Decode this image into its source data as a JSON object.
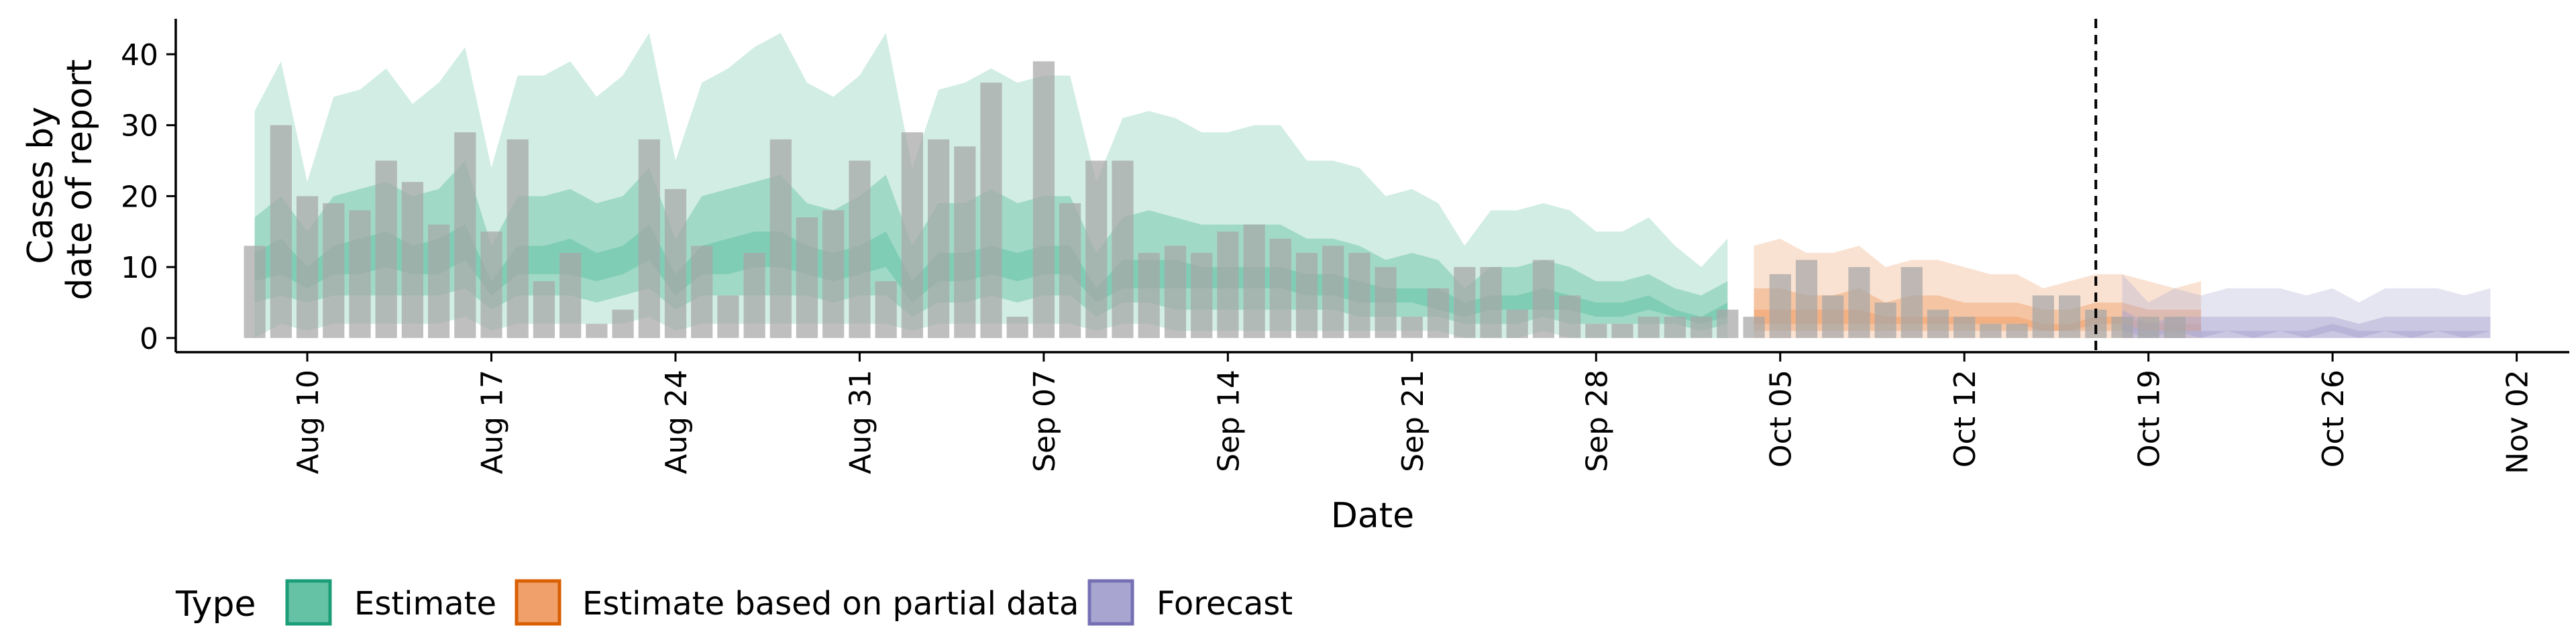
{
  "chart_data": {
    "type": "area",
    "title": "",
    "xlabel": "Date",
    "ylabel_lines": [
      "Cases by",
      "date of report"
    ],
    "xlim": [
      "2020-08-05",
      "2020-11-04"
    ],
    "ylim": [
      -2,
      45
    ],
    "yticks": [
      0,
      10,
      20,
      30,
      40
    ],
    "xticks": [
      {
        "date": "2020-08-10",
        "label": "Aug 10"
      },
      {
        "date": "2020-08-17",
        "label": "Aug 17"
      },
      {
        "date": "2020-08-24",
        "label": "Aug 24"
      },
      {
        "date": "2020-08-31",
        "label": "Aug 31"
      },
      {
        "date": "2020-09-07",
        "label": "Sep 07"
      },
      {
        "date": "2020-09-14",
        "label": "Sep 14"
      },
      {
        "date": "2020-09-21",
        "label": "Sep 21"
      },
      {
        "date": "2020-09-28",
        "label": "Sep 28"
      },
      {
        "date": "2020-10-05",
        "label": "Oct 05"
      },
      {
        "date": "2020-10-12",
        "label": "Oct 12"
      },
      {
        "date": "2020-10-19",
        "label": "Oct 19"
      },
      {
        "date": "2020-10-26",
        "label": "Oct 26"
      },
      {
        "date": "2020-11-02",
        "label": "Nov 02"
      }
    ],
    "forecast_date": "2020-10-17",
    "grid": false,
    "legend": {
      "position": "bottom",
      "title": "Type",
      "entries": [
        {
          "label": "Estimate",
          "fill": "#66c2a5",
          "stroke": "#1b9e77"
        },
        {
          "label": "Estimate based on partial data",
          "fill": "#f0a06a",
          "stroke": "#d95f02"
        },
        {
          "label": "Forecast",
          "fill": "#a9a5d1",
          "stroke": "#7570b3"
        }
      ]
    },
    "colors": {
      "bars": "#a6a6a6",
      "Estimate": "#66c2a5",
      "Estimate based on partial data": "#f0a06a",
      "Forecast": "#a9a5d1",
      "forecast_line": "#000000"
    },
    "reported_cases": {
      "start": "2020-08-08",
      "values": [
        13,
        30,
        20,
        19,
        18,
        25,
        22,
        16,
        29,
        15,
        28,
        8,
        12,
        2,
        4,
        28,
        21,
        13,
        6,
        12,
        28,
        17,
        18,
        25,
        8,
        29,
        28,
        27,
        36,
        3,
        39,
        19,
        25,
        25,
        12,
        13,
        12,
        15,
        16,
        14,
        12,
        13,
        12,
        10,
        3,
        7,
        10,
        10,
        4,
        11,
        6,
        2,
        2,
        3,
        3,
        3,
        4,
        3,
        9,
        11,
        6,
        10,
        5,
        10,
        4,
        3,
        2,
        2,
        6,
        6,
        4,
        3,
        3,
        3
      ]
    },
    "estimate_series": [
      {
        "type": "Estimate",
        "start": "2020-08-08",
        "upper90": [
          32,
          39,
          22,
          34,
          35,
          38,
          33,
          36,
          41,
          24,
          37,
          37,
          39,
          34,
          37,
          43,
          25,
          36,
          38,
          41,
          43,
          36,
          34,
          37,
          43,
          24,
          35,
          36,
          38,
          36,
          37,
          37,
          22,
          31,
          32,
          31,
          29,
          29,
          30,
          30,
          25,
          25,
          24,
          20,
          21,
          19,
          13,
          18,
          18,
          19,
          18,
          15,
          15,
          17,
          13,
          10,
          14
        ],
        "upper50": [
          17,
          20,
          15,
          20,
          21,
          22,
          20,
          21,
          25,
          13,
          20,
          20,
          21,
          19,
          20,
          24,
          14,
          20,
          21,
          22,
          23,
          19,
          18,
          20,
          23,
          13,
          19,
          19,
          21,
          19,
          20,
          20,
          12,
          17,
          18,
          17,
          16,
          16,
          16,
          16,
          14,
          14,
          13,
          11,
          12,
          11,
          7,
          10,
          10,
          11,
          10,
          8,
          8,
          9,
          7,
          6,
          8
        ],
        "upper20": [
          12,
          14,
          10,
          13,
          14,
          15,
          13,
          14,
          16,
          8,
          13,
          13,
          14,
          12,
          13,
          16,
          9,
          13,
          14,
          15,
          15,
          13,
          12,
          13,
          15,
          8,
          12,
          12,
          13,
          12,
          13,
          13,
          7,
          11,
          11,
          11,
          10,
          10,
          10,
          10,
          9,
          9,
          8,
          7,
          7,
          7,
          5,
          6,
          6,
          7,
          6,
          5,
          5,
          6,
          4,
          3,
          5
        ],
        "lower20": [
          8,
          9,
          7,
          9,
          9,
          10,
          9,
          9,
          11,
          6,
          9,
          9,
          9,
          8,
          9,
          11,
          6,
          9,
          9,
          10,
          10,
          9,
          8,
          9,
          10,
          5,
          8,
          8,
          9,
          8,
          9,
          9,
          5,
          7,
          7,
          7,
          7,
          7,
          7,
          7,
          6,
          6,
          5,
          5,
          5,
          4,
          3,
          4,
          4,
          4,
          4,
          3,
          3,
          4,
          3,
          2,
          3
        ],
        "lower50": [
          5,
          6,
          5,
          6,
          6,
          6,
          6,
          6,
          7,
          4,
          6,
          6,
          6,
          5,
          6,
          7,
          4,
          6,
          6,
          6,
          6,
          6,
          5,
          6,
          6,
          3,
          5,
          5,
          6,
          5,
          6,
          6,
          3,
          5,
          5,
          4,
          4,
          4,
          4,
          4,
          4,
          4,
          3,
          3,
          3,
          3,
          2,
          2,
          2,
          3,
          2,
          2,
          2,
          2,
          2,
          1,
          2
        ],
        "lower90": [
          0,
          2,
          1,
          2,
          2,
          2,
          2,
          2,
          3,
          1,
          2,
          2,
          2,
          2,
          2,
          3,
          1,
          2,
          2,
          2,
          2,
          2,
          2,
          2,
          2,
          1,
          2,
          2,
          2,
          2,
          2,
          2,
          1,
          2,
          2,
          1,
          1,
          1,
          1,
          1,
          1,
          1,
          1,
          1,
          1,
          1,
          0,
          0,
          0,
          1,
          0,
          0,
          0,
          0,
          0,
          0,
          0
        ]
      },
      {
        "type": "Estimate based on partial data",
        "start": "2020-10-04",
        "upper90": [
          13,
          14,
          12,
          12,
          13,
          10,
          11,
          11,
          10,
          9,
          9,
          7,
          8,
          9,
          9,
          8,
          7,
          8
        ],
        "upper50": [
          7,
          7,
          6,
          6,
          7,
          5,
          6,
          6,
          5,
          5,
          5,
          4,
          4,
          5,
          5,
          4,
          4,
          4
        ],
        "upper20": [
          4,
          4,
          4,
          4,
          4,
          3,
          3,
          3,
          3,
          3,
          3,
          2,
          2,
          3,
          3,
          2,
          2,
          2
        ],
        "lower20": [
          2,
          2,
          2,
          2,
          2,
          2,
          2,
          2,
          2,
          2,
          2,
          1,
          1,
          2,
          2,
          1,
          1,
          1
        ],
        "lower50": [
          1,
          1,
          1,
          1,
          1,
          1,
          1,
          1,
          1,
          1,
          1,
          1,
          1,
          1,
          1,
          1,
          1,
          1
        ],
        "lower90": [
          0,
          0,
          0,
          0,
          0,
          0,
          0,
          0,
          0,
          0,
          0,
          0,
          0,
          0,
          0,
          0,
          0,
          0
        ]
      },
      {
        "type": "Forecast",
        "start": "2020-10-18",
        "upper90": [
          9,
          5,
          7,
          6,
          7,
          7,
          7,
          6,
          7,
          5,
          7,
          7,
          7,
          6,
          7
        ],
        "upper50": [
          4,
          2,
          3,
          3,
          3,
          3,
          3,
          3,
          3,
          2,
          3,
          3,
          3,
          3,
          3
        ],
        "upper20": [
          2,
          1,
          1,
          1,
          1,
          1,
          1,
          1,
          2,
          1,
          1,
          1,
          1,
          1,
          1
        ],
        "lower20": [
          1,
          0,
          1,
          0,
          1,
          0,
          1,
          0,
          1,
          0,
          1,
          0,
          1,
          0,
          1
        ],
        "lower50": [
          0,
          0,
          0,
          0,
          0,
          0,
          0,
          0,
          0,
          0,
          0,
          0,
          0,
          0,
          0
        ],
        "lower90": [
          0,
          0,
          0,
          0,
          0,
          0,
          0,
          0,
          0,
          0,
          0,
          0,
          0,
          0,
          0
        ]
      }
    ]
  }
}
